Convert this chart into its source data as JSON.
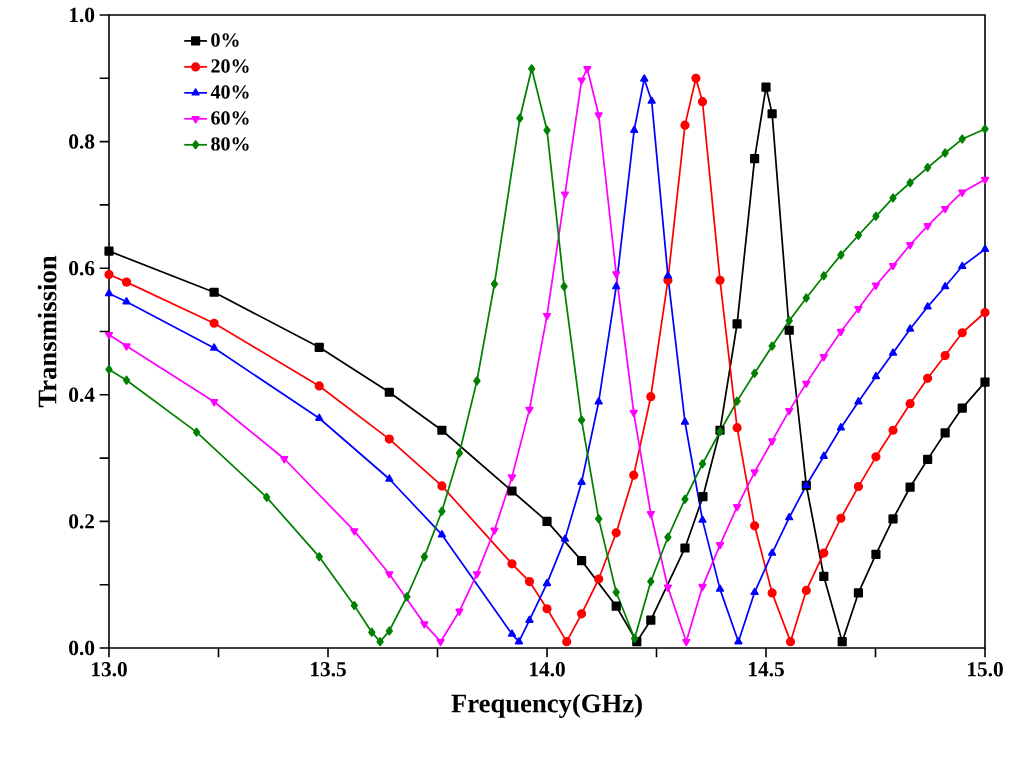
{
  "chart_data": {
    "type": "line",
    "xlabel": "Frequency(GHz)",
    "ylabel": "Transmission",
    "xlim": [
      13,
      15
    ],
    "ylim": [
      0,
      1
    ],
    "xticks": [
      {
        "value": 13,
        "label": "13.0"
      },
      {
        "value": 13.25,
        "label": null
      },
      {
        "value": 13.5,
        "label": "13.5"
      },
      {
        "value": 13.75,
        "label": null
      },
      {
        "value": 14,
        "label": "14.0"
      },
      {
        "value": 14.25,
        "label": null
      },
      {
        "value": 14.5,
        "label": "14.5"
      },
      {
        "value": 14.75,
        "label": null
      },
      {
        "value": 15,
        "label": "15.0"
      }
    ],
    "yticks": [
      {
        "value": 0,
        "label": "0.0"
      },
      {
        "value": 0.1,
        "label": null
      },
      {
        "value": 0.2,
        "label": "0.2"
      },
      {
        "value": 0.3,
        "label": null
      },
      {
        "value": 0.4,
        "label": "0.4"
      },
      {
        "value": 0.5,
        "label": null
      },
      {
        "value": 0.6,
        "label": "0.6"
      },
      {
        "value": 0.7,
        "label": null
      },
      {
        "value": 0.8,
        "label": "0.8"
      },
      {
        "value": 0.9,
        "label": null
      },
      {
        "value": 1,
        "label": "1.0"
      }
    ],
    "legend": "top left",
    "grid": false,
    "line_style": "solid",
    "series": [
      {
        "name": "0%",
        "color": "#000000",
        "marker": "square",
        "x": [
          13.0,
          13.24,
          13.48,
          13.64,
          13.76,
          13.92,
          14.0,
          14.079,
          14.158,
          14.205,
          14.237,
          14.315,
          14.356,
          14.395,
          14.434,
          14.474,
          14.5,
          14.514,
          14.553,
          14.592,
          14.632,
          14.674,
          14.711,
          14.751,
          14.79,
          14.829,
          14.869,
          14.909,
          14.948,
          15.0
        ],
        "values": [
          0.627,
          0.562,
          0.475,
          0.404,
          0.344,
          0.248,
          0.2,
          0.138,
          0.066,
          0.01,
          0.044,
          0.158,
          0.239,
          0.344,
          0.512,
          0.773,
          0.886,
          0.844,
          0.502,
          0.257,
          0.113,
          0.01,
          0.087,
          0.148,
          0.204,
          0.254,
          0.298,
          0.34,
          0.379,
          0.42
        ]
      },
      {
        "name": "20%",
        "color": "#ff0000",
        "marker": "circle",
        "x": [
          13.0,
          13.04,
          13.24,
          13.48,
          13.64,
          13.76,
          13.92,
          13.96,
          14.0,
          14.045,
          14.079,
          14.118,
          14.158,
          14.198,
          14.237,
          14.276,
          14.315,
          14.34,
          14.355,
          14.395,
          14.434,
          14.474,
          14.514,
          14.556,
          14.592,
          14.632,
          14.671,
          14.711,
          14.751,
          14.79,
          14.829,
          14.869,
          14.909,
          14.948,
          15.0
        ],
        "values": [
          0.59,
          0.578,
          0.513,
          0.414,
          0.33,
          0.256,
          0.133,
          0.105,
          0.062,
          0.01,
          0.054,
          0.109,
          0.182,
          0.273,
          0.397,
          0.581,
          0.826,
          0.9,
          0.863,
          0.581,
          0.348,
          0.193,
          0.087,
          0.01,
          0.091,
          0.15,
          0.205,
          0.255,
          0.302,
          0.344,
          0.386,
          0.426,
          0.462,
          0.498,
          0.53
        ]
      },
      {
        "name": "40%",
        "color": "#0000ff",
        "marker": "triangle",
        "x": [
          13.0,
          13.04,
          13.24,
          13.48,
          13.64,
          13.76,
          13.92,
          13.936,
          13.96,
          14.0,
          14.041,
          14.079,
          14.118,
          14.158,
          14.199,
          14.222,
          14.239,
          14.276,
          14.315,
          14.355,
          14.395,
          14.437,
          14.474,
          14.514,
          14.553,
          14.592,
          14.632,
          14.671,
          14.711,
          14.751,
          14.79,
          14.829,
          14.869,
          14.909,
          14.948,
          15.0
        ],
        "values": [
          0.56,
          0.547,
          0.474,
          0.363,
          0.267,
          0.179,
          0.022,
          0.01,
          0.044,
          0.102,
          0.172,
          0.262,
          0.389,
          0.571,
          0.818,
          0.899,
          0.864,
          0.588,
          0.357,
          0.202,
          0.093,
          0.01,
          0.088,
          0.15,
          0.206,
          0.257,
          0.303,
          0.348,
          0.389,
          0.429,
          0.466,
          0.504,
          0.539,
          0.571,
          0.603,
          0.63
        ]
      },
      {
        "name": "60%",
        "color": "#ff00ff",
        "marker": "triangle-down",
        "x": [
          13.0,
          13.04,
          13.24,
          13.4,
          13.56,
          13.64,
          13.72,
          13.757,
          13.8,
          13.84,
          13.88,
          13.92,
          13.96,
          14.0,
          14.041,
          14.079,
          14.092,
          14.118,
          14.158,
          14.198,
          14.237,
          14.276,
          14.318,
          14.355,
          14.395,
          14.434,
          14.474,
          14.514,
          14.553,
          14.592,
          14.632,
          14.671,
          14.711,
          14.751,
          14.79,
          14.829,
          14.869,
          14.909,
          14.948,
          15.0
        ],
        "values": [
          0.495,
          0.477,
          0.389,
          0.299,
          0.185,
          0.117,
          0.038,
          0.01,
          0.058,
          0.117,
          0.186,
          0.27,
          0.377,
          0.525,
          0.717,
          0.897,
          0.915,
          0.842,
          0.591,
          0.372,
          0.212,
          0.096,
          0.01,
          0.097,
          0.163,
          0.223,
          0.278,
          0.327,
          0.375,
          0.418,
          0.46,
          0.5,
          0.536,
          0.573,
          0.604,
          0.637,
          0.667,
          0.694,
          0.72,
          0.74
        ]
      },
      {
        "name": "80%",
        "color": "#008000",
        "marker": "diamond",
        "x": [
          13.0,
          13.04,
          13.2,
          13.36,
          13.48,
          13.56,
          13.6,
          13.619,
          13.64,
          13.68,
          13.72,
          13.76,
          13.8,
          13.84,
          13.88,
          13.938,
          13.965,
          14.0,
          14.039,
          14.079,
          14.118,
          14.158,
          14.2,
          14.237,
          14.276,
          14.315,
          14.355,
          14.395,
          14.434,
          14.474,
          14.514,
          14.553,
          14.592,
          14.632,
          14.671,
          14.711,
          14.751,
          14.79,
          14.829,
          14.869,
          14.909,
          14.948,
          15.0
        ],
        "values": [
          0.44,
          0.423,
          0.341,
          0.238,
          0.144,
          0.067,
          0.025,
          0.01,
          0.027,
          0.081,
          0.144,
          0.216,
          0.308,
          0.422,
          0.575,
          0.837,
          0.915,
          0.818,
          0.571,
          0.36,
          0.204,
          0.088,
          0.015,
          0.105,
          0.175,
          0.235,
          0.291,
          0.342,
          0.39,
          0.434,
          0.477,
          0.517,
          0.553,
          0.588,
          0.621,
          0.652,
          0.682,
          0.711,
          0.735,
          0.759,
          0.782,
          0.804,
          0.82
        ]
      }
    ]
  }
}
